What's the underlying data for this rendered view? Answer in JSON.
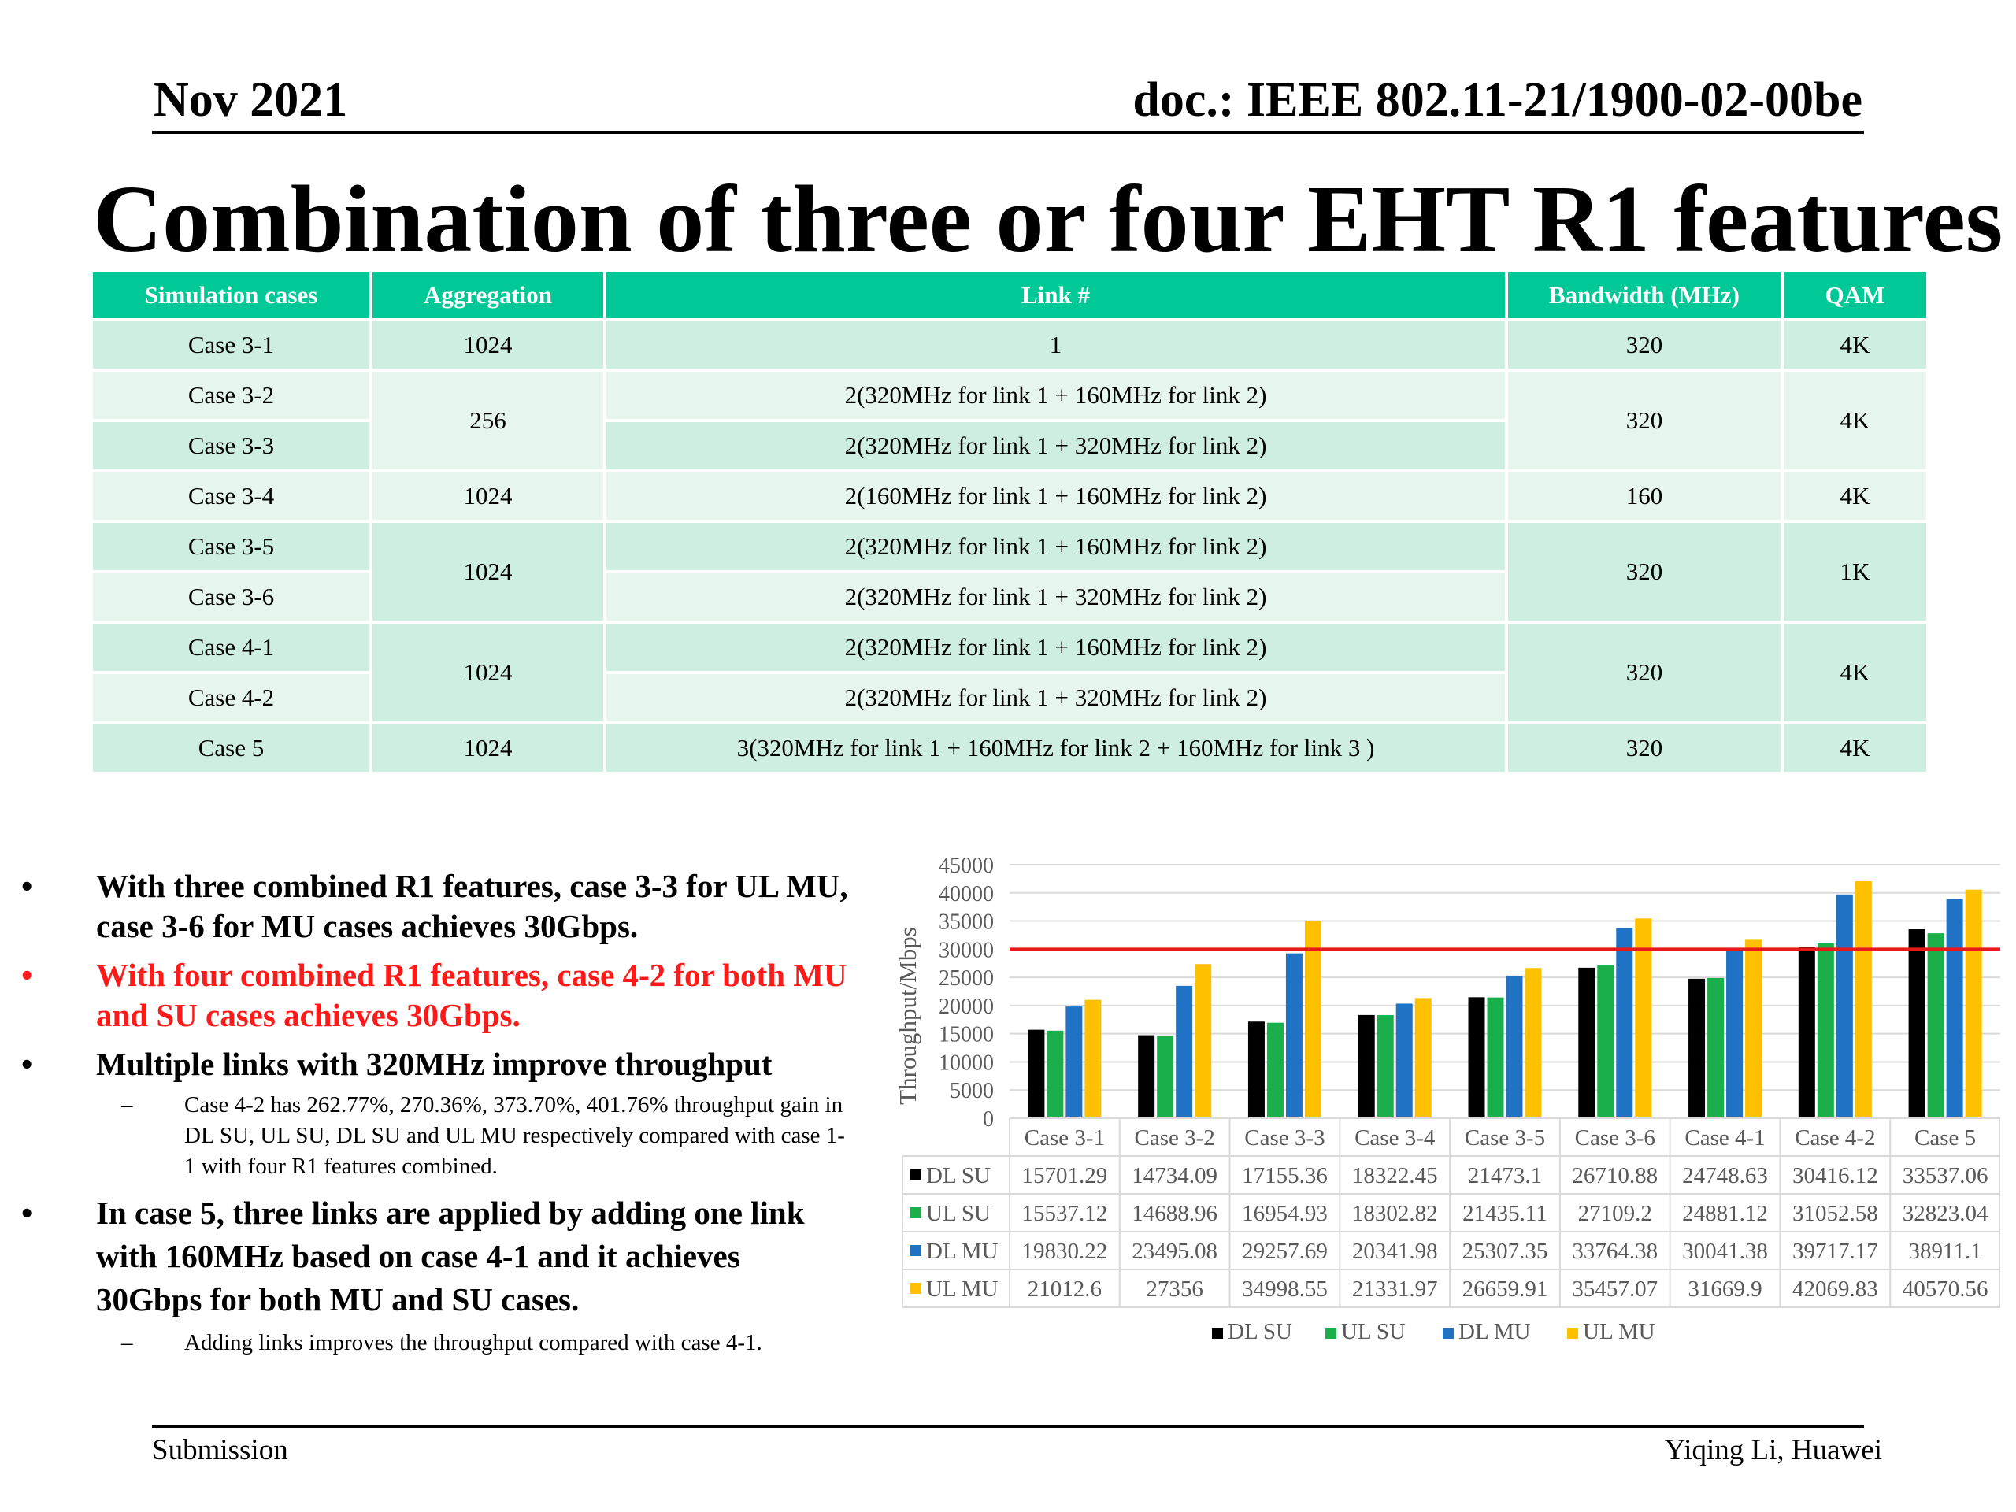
{
  "header": {
    "date": "Nov 2021",
    "doc": "doc.: IEEE 802.11-21/1900-02-00be"
  },
  "title": "Combination of three or four EHT R1 features",
  "table": {
    "headers": [
      "Simulation cases",
      "Aggregation",
      "Link #",
      "Bandwidth (MHz)",
      "QAM"
    ],
    "rows": [
      {
        "case": "Case 3-1",
        "aggregation": "1024",
        "link": "1",
        "bandwidth": "320",
        "qam": "4K"
      },
      {
        "case": "Case 3-2",
        "aggregation": "256",
        "link": "2(320MHz for link 1 + 160MHz for link 2)",
        "bandwidth": "320",
        "qam": "4K"
      },
      {
        "case": "Case 3-3",
        "aggregation": "256",
        "link": "2(320MHz for link 1 + 320MHz for link 2)",
        "bandwidth": "320",
        "qam": "4K"
      },
      {
        "case": "Case 3-4",
        "aggregation": "1024",
        "link": "2(160MHz for link 1 + 160MHz for link 2)",
        "bandwidth": "160",
        "qam": "4K"
      },
      {
        "case": "Case 3-5",
        "aggregation": "1024",
        "link": "2(320MHz for link 1 + 160MHz for link 2)",
        "bandwidth": "320",
        "qam": "1K"
      },
      {
        "case": "Case 3-6",
        "aggregation": "1024",
        "link": "2(320MHz for link 1 + 320MHz for link 2)",
        "bandwidth": "320",
        "qam": "1K"
      },
      {
        "case": "Case 4-1",
        "aggregation": "1024",
        "link": "2(320MHz for link 1 + 160MHz for link 2)",
        "bandwidth": "320",
        "qam": "4K"
      },
      {
        "case": "Case 4-2",
        "aggregation": "1024",
        "link": "2(320MHz for link 1 + 320MHz for link 2)",
        "bandwidth": "320",
        "qam": "4K"
      },
      {
        "case": "Case 5",
        "aggregation": "1024",
        "link": "3(320MHz for link 1 + 160MHz for link 2 + 160MHz for link 3 )",
        "bandwidth": "320",
        "qam": "4K"
      }
    ]
  },
  "bullets": {
    "b1": "With three combined R1 features, case 3-3 for UL MU, case 3-6 for MU cases achieves 30Gbps.",
    "b2": "With four combined R1 features, case 4-2 for both MU and SU cases achieves 30Gbps.",
    "b3": "Multiple links with 320MHz improve throughput",
    "b3_sub": "Case 4-2 has 262.77%, 270.36%, 373.70%, 401.76% throughput gain in DL SU, UL SU, DL SU and UL MU respectively compared with case 1-1 with four R1 features combined.",
    "b4": "In case 5, three links are applied by adding one link with 160MHz based on case 4-1 and it achieves 30Gbps for both MU and SU cases.",
    "b4_sub": "Adding links improves the throughput compared with case 4-1.",
    "bullet_char": "•",
    "dash_char": "–"
  },
  "chart_data": {
    "type": "bar",
    "ylabel": "Throughput/Mbps",
    "ylim": [
      0,
      45000
    ],
    "yticks": [
      "0",
      "5000",
      "10000",
      "15000",
      "20000",
      "25000",
      "30000",
      "35000",
      "40000",
      "45000"
    ],
    "reference_line": {
      "y": 30000,
      "color": "#e8191b"
    },
    "grid": true,
    "legend": "bottom",
    "categories": [
      "Case 3-1",
      "Case 3-2",
      "Case 3-3",
      "Case 3-4",
      "Case 3-5",
      "Case 3-6",
      "Case 4-1",
      "Case 4-2",
      "Case 5"
    ],
    "series": [
      {
        "name": "DL SU",
        "color": "#000000",
        "values": [
          15701.29,
          14734.09,
          17155.36,
          18322.45,
          21473.1,
          26710.88,
          24748.63,
          30416.12,
          33537.06
        ],
        "labels": [
          "15701.29",
          "14734.09",
          "17155.36",
          "18322.45",
          "21473.1",
          "26710.88",
          "24748.63",
          "30416.12",
          "33537.06"
        ]
      },
      {
        "name": "UL SU",
        "color": "#1aaf4b",
        "values": [
          15537.12,
          14688.96,
          16954.93,
          18302.82,
          21435.11,
          27109.2,
          24881.12,
          31052.58,
          32823.04
        ],
        "labels": [
          "15537.12",
          "14688.96",
          "16954.93",
          "18302.82",
          "21435.11",
          "27109.2",
          "24881.12",
          "31052.58",
          "32823.04"
        ]
      },
      {
        "name": "DL MU",
        "color": "#1f72c4",
        "values": [
          19830.22,
          23495.08,
          29257.69,
          20341.98,
          25307.35,
          33764.38,
          30041.38,
          39717.17,
          38911.1
        ],
        "labels": [
          "19830.22",
          "23495.08",
          "29257.69",
          "20341.98",
          "25307.35",
          "33764.38",
          "30041.38",
          "39717.17",
          "38911.1"
        ]
      },
      {
        "name": "UL MU",
        "color": "#ffc000",
        "values": [
          21012.6,
          27356,
          34998.55,
          21331.97,
          26659.91,
          35457.07,
          31669.9,
          42069.83,
          40570.56
        ],
        "labels": [
          "21012.6",
          "27356",
          "34998.55",
          "21331.97",
          "26659.91",
          "35457.07",
          "31669.9",
          "42069.83",
          "40570.56"
        ]
      }
    ]
  },
  "footer": {
    "left": "Submission",
    "right": "Yiqing Li, Huawei"
  }
}
